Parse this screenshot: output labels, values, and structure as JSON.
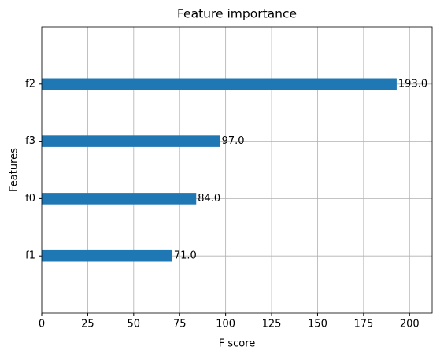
{
  "chart_data": {
    "type": "barh",
    "title": "Feature importance",
    "xlabel": "F score",
    "ylabel": "Features",
    "categories": [
      "f2",
      "f3",
      "f0",
      "f1"
    ],
    "values": [
      193,
      97,
      84,
      71
    ],
    "value_labels": [
      "193.0",
      "97.0",
      "84.0",
      "71.0"
    ],
    "color": "#1f77b4",
    "xlim": [
      0,
      212.3
    ],
    "xticks": [
      0,
      25,
      50,
      75,
      100,
      125,
      150,
      175,
      200
    ],
    "grid": true
  }
}
